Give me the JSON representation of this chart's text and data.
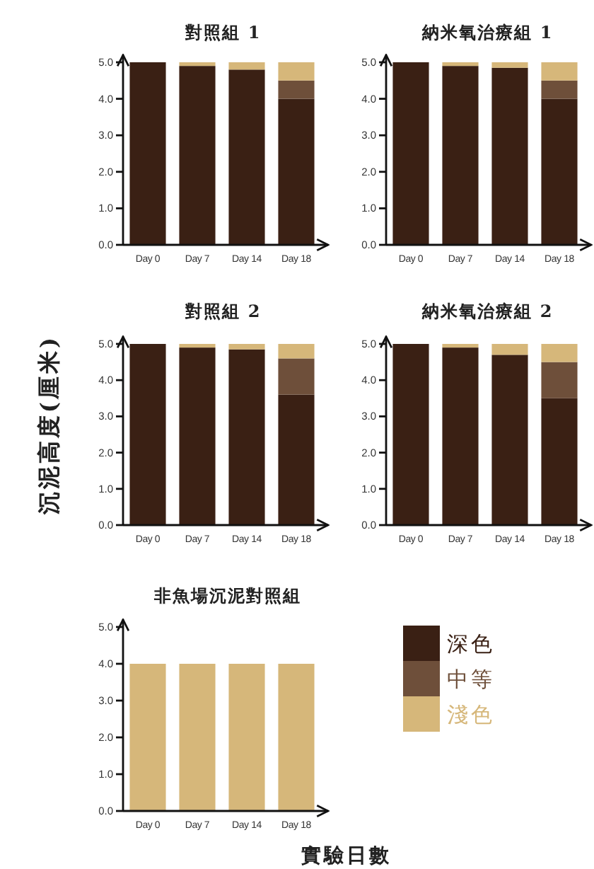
{
  "chart_data": [
    {
      "type": "bar",
      "title": "對照組 1",
      "categories": [
        "Day 0",
        "Day 7",
        "Day 14",
        "Day 18"
      ],
      "stacked": true,
      "ylim": [
        0,
        5.2
      ],
      "yticks": [
        {
          "value": 0,
          "label": "0.0"
        },
        {
          "value": 1,
          "label": "1.0"
        },
        {
          "value": 2,
          "label": "2.0"
        },
        {
          "value": 3,
          "label": "3.0"
        },
        {
          "value": 4,
          "label": "4.0"
        },
        {
          "value": 5,
          "label": "5.0"
        }
      ],
      "series": [
        {
          "color": "#3a2014",
          "values": [
            5,
            4.9,
            4.8,
            4.0
          ]
        },
        {
          "color": "#6e4f3a",
          "values": [
            0,
            0,
            0,
            0.5
          ]
        },
        {
          "color": "#d6b77a",
          "values": [
            0,
            0.1,
            0.2,
            0.5
          ]
        }
      ]
    },
    {
      "type": "bar",
      "title": "納米氧治療組 1",
      "categories": [
        "Day 0",
        "Day 7",
        "Day 14",
        "Day 18"
      ],
      "stacked": true,
      "ylim": [
        0,
        5.2
      ],
      "yticks": [
        {
          "value": 0,
          "label": "0.0"
        },
        {
          "value": 1,
          "label": "1.0"
        },
        {
          "value": 2,
          "label": "2.0"
        },
        {
          "value": 3,
          "label": "3.0"
        },
        {
          "value": 4,
          "label": "4.0"
        },
        {
          "value": 5,
          "label": "5.0"
        }
      ],
      "series": [
        {
          "color": "#3a2014",
          "values": [
            5,
            4.9,
            4.85,
            4.0
          ]
        },
        {
          "color": "#6e4f3a",
          "values": [
            0,
            0,
            0,
            0.5
          ]
        },
        {
          "color": "#d6b77a",
          "values": [
            0,
            0.1,
            0.15,
            0.5
          ]
        }
      ]
    },
    {
      "type": "bar",
      "title": "對照組 2",
      "ylabel": "沉泥高度(厘米)",
      "categories": [
        "Day 0",
        "Day 7",
        "Day 14",
        "Day 18"
      ],
      "stacked": true,
      "ylim": [
        0,
        5.2
      ],
      "yticks": [
        {
          "value": 0,
          "label": "0.0"
        },
        {
          "value": 1,
          "label": "1.0"
        },
        {
          "value": 2,
          "label": "2.0"
        },
        {
          "value": 3,
          "label": "3.0"
        },
        {
          "value": 4,
          "label": "4.0"
        },
        {
          "value": 5,
          "label": "5.0"
        }
      ],
      "series": [
        {
          "color": "#3a2014",
          "values": [
            5,
            4.9,
            4.85,
            3.6
          ]
        },
        {
          "color": "#6e4f3a",
          "values": [
            0,
            0,
            0,
            1.0
          ]
        },
        {
          "color": "#d6b77a",
          "values": [
            0,
            0.1,
            0.15,
            0.4
          ]
        }
      ]
    },
    {
      "type": "bar",
      "title": "納米氧治療組 2",
      "categories": [
        "Day 0",
        "Day 7",
        "Day 14",
        "Day 18"
      ],
      "stacked": true,
      "ylim": [
        0,
        5.2
      ],
      "yticks": [
        {
          "value": 0,
          "label": "0.0"
        },
        {
          "value": 1,
          "label": "1.0"
        },
        {
          "value": 2,
          "label": "2.0"
        },
        {
          "value": 3,
          "label": "3.0"
        },
        {
          "value": 4,
          "label": "4.0"
        },
        {
          "value": 5,
          "label": "5.0"
        }
      ],
      "series": [
        {
          "color": "#3a2014",
          "values": [
            5,
            4.9,
            4.7,
            3.5
          ]
        },
        {
          "color": "#6e4f3a",
          "values": [
            0,
            0,
            0,
            1.0
          ]
        },
        {
          "color": "#d6b77a",
          "values": [
            0,
            0.1,
            0.3,
            0.5
          ]
        }
      ]
    },
    {
      "type": "bar",
      "title": "非魚場沉泥對照組",
      "xlabel": "實驗日數",
      "categories": [
        "Day 0",
        "Day 7",
        "Day 14",
        "Day 18"
      ],
      "stacked": true,
      "legend": "right",
      "ylim": [
        0,
        5.2
      ],
      "yticks": [
        {
          "value": 0,
          "label": "0.0"
        },
        {
          "value": 1,
          "label": "1.0"
        },
        {
          "value": 2,
          "label": "2.0"
        },
        {
          "value": 3,
          "label": "3.0"
        },
        {
          "value": 4,
          "label": "4.0"
        },
        {
          "value": 5,
          "label": "5.0"
        }
      ],
      "series": [
        {
          "name": "深色",
          "color": "#3a2014",
          "values": [
            0,
            0,
            0,
            0
          ]
        },
        {
          "name": "中等",
          "color": "#6e4f3a",
          "values": [
            0,
            0,
            0,
            0
          ]
        },
        {
          "name": "淺色",
          "color": "#d6b77a",
          "values": [
            4,
            4,
            4,
            4
          ]
        }
      ]
    }
  ]
}
